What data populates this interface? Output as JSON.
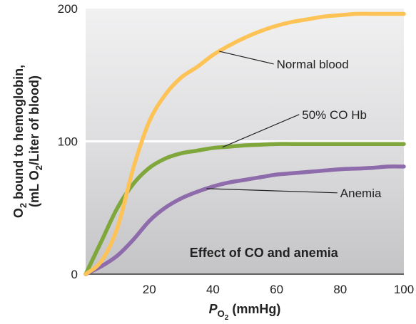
{
  "chart_data": {
    "type": "line",
    "title": "",
    "annotation_caption": "Effect of CO and anemia",
    "xlabel": {
      "prefix": "P",
      "sub": "O",
      "subsub": "2",
      "suffix": " (mmHg)"
    },
    "ylabel": {
      "line1_prefix": "O",
      "line1_sub": "2",
      "line1_suffix": " bound to hemoglobin,",
      "line2_prefix": "(mL O",
      "line2_sub": "2",
      "line2_suffix": "/Liter of blood)"
    },
    "xlim": [
      0,
      100
    ],
    "ylim": [
      0,
      200
    ],
    "xticks": [
      20,
      40,
      60,
      80,
      100
    ],
    "xtick_labels": [
      "20",
      "40",
      "60",
      "80",
      "100"
    ],
    "yticks": [
      0,
      100,
      200
    ],
    "ytick_labels": [
      "0",
      "100",
      "200"
    ],
    "grid": false,
    "background": "gradient-gray",
    "series": [
      {
        "name": "Normal blood",
        "color": "#FDC357",
        "x": [
          0,
          5,
          10,
          15,
          20,
          25,
          30,
          35,
          40,
          45,
          50,
          55,
          60,
          65,
          70,
          75,
          80,
          85,
          90,
          95,
          100
        ],
        "y": [
          0,
          10,
          35,
          80,
          115,
          135,
          148,
          156,
          165,
          172,
          178,
          183,
          187,
          190,
          192,
          194,
          195,
          196,
          196,
          196,
          196
        ]
      },
      {
        "name": "50% CO Hb",
        "color": "#7FA73B",
        "x": [
          0,
          5,
          10,
          15,
          20,
          25,
          30,
          35,
          40,
          45,
          50,
          55,
          60,
          65,
          70,
          75,
          80,
          85,
          90,
          95,
          100
        ],
        "y": [
          0,
          25,
          50,
          68,
          80,
          87,
          91,
          93,
          95,
          96,
          97,
          97.5,
          98,
          98,
          98,
          98,
          98,
          98,
          98,
          98,
          98
        ]
      },
      {
        "name": "Anemia",
        "color": "#8E6BAA",
        "x": [
          0,
          5,
          10,
          15,
          20,
          25,
          30,
          35,
          40,
          45,
          50,
          55,
          60,
          65,
          70,
          75,
          80,
          85,
          90,
          95,
          100
        ],
        "y": [
          0,
          6,
          14,
          26,
          40,
          50,
          57,
          62,
          66,
          69,
          71,
          73,
          75,
          76,
          77,
          78,
          79,
          79.5,
          80,
          81,
          81
        ]
      }
    ],
    "annotations": [
      {
        "label": "Normal blood",
        "series": "Normal blood",
        "at_x": 42,
        "text_at": {
          "x": 60,
          "y": 155
        }
      },
      {
        "label": "50% CO Hb",
        "series": "50% CO Hb",
        "at_x": 43,
        "text_at": {
          "x": 68,
          "y": 117
        }
      },
      {
        "label": "Anemia",
        "series": "Anemia",
        "at_x": 38,
        "text_at": {
          "x": 80,
          "y": 58
        }
      }
    ]
  }
}
